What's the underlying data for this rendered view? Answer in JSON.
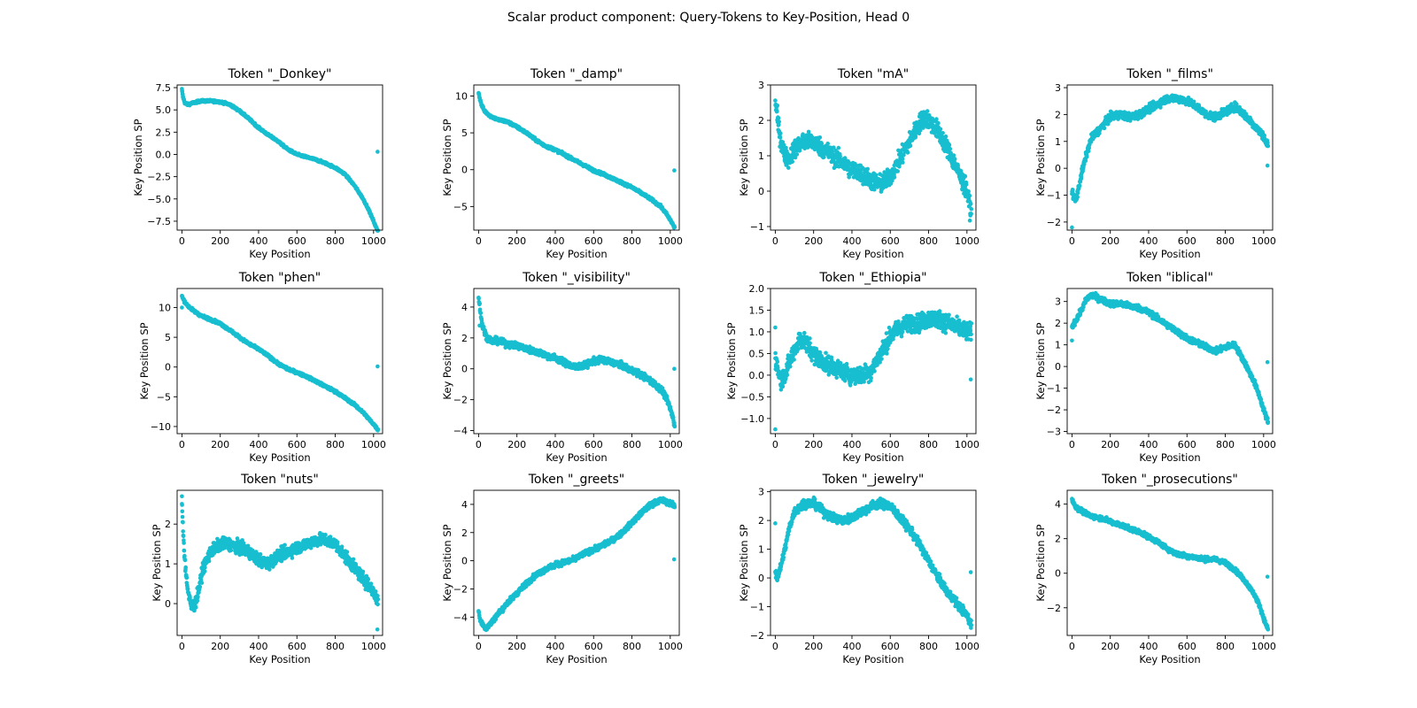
{
  "figure": {
    "suptitle": "Scalar product component: Query-Tokens to Key-Position, Head 0",
    "point_color": "#17BECF",
    "axis_color": "#000000"
  },
  "chart_data": [
    {
      "type": "scatter",
      "title": "Token \"_Donkey\"",
      "xlabel": "Key Position",
      "ylabel": "Key Position SP",
      "xlim": [
        -25,
        1047
      ],
      "ylim": [
        -8.5,
        7.8
      ],
      "xticks": [
        0,
        200,
        400,
        600,
        800,
        1000
      ],
      "xtick_labels": [
        "0",
        "200",
        "400",
        "600",
        "800",
        "1000"
      ],
      "yticks": [
        7.5,
        5.0,
        2.5,
        0.0,
        -2.5,
        -5.0,
        -7.5
      ],
      "ytick_labels": [
        "7.5",
        "5.0",
        "2.5",
        "0.0",
        "−2.5",
        "−5.0",
        "−7.5"
      ],
      "curve_x": [
        0,
        5,
        15,
        30,
        60,
        100,
        150,
        200,
        250,
        300,
        350,
        400,
        450,
        500,
        550,
        600,
        650,
        700,
        750,
        800,
        850,
        900,
        940,
        970,
        1000,
        1015,
        1020
      ],
      "curve_y": [
        7.3,
        6.5,
        5.8,
        5.6,
        5.8,
        6.0,
        6.0,
        5.9,
        5.6,
        4.9,
        4.0,
        3.0,
        2.2,
        1.5,
        0.6,
        0.0,
        -0.3,
        -0.6,
        -1.0,
        -1.5,
        -2.2,
        -3.5,
        -4.8,
        -6.0,
        -7.5,
        -8.3,
        -8.5
      ],
      "noise": 0.12,
      "outliers": [
        [
          1021,
          0.3
        ]
      ]
    },
    {
      "type": "scatter",
      "title": "Token \"_damp\"",
      "xlabel": "Key Position",
      "ylabel": "Key Position SP",
      "xlim": [
        -25,
        1047
      ],
      "ylim": [
        -8.2,
        11.5
      ],
      "xticks": [
        0,
        200,
        400,
        600,
        800,
        1000
      ],
      "xtick_labels": [
        "0",
        "200",
        "400",
        "600",
        "800",
        "1000"
      ],
      "yticks": [
        10,
        5,
        0,
        -5
      ],
      "ytick_labels": [
        "10",
        "5",
        "0",
        "−5"
      ],
      "curve_x": [
        0,
        5,
        15,
        30,
        60,
        100,
        150,
        200,
        250,
        300,
        350,
        400,
        450,
        500,
        550,
        600,
        650,
        700,
        750,
        800,
        850,
        900,
        950,
        980,
        1000,
        1015,
        1020
      ],
      "curve_y": [
        10.5,
        9.8,
        8.8,
        8.0,
        7.3,
        6.8,
        6.5,
        5.8,
        5.0,
        4.0,
        3.2,
        2.7,
        2.0,
        1.3,
        0.6,
        -0.1,
        -0.6,
        -1.2,
        -1.8,
        -2.4,
        -3.2,
        -4.0,
        -5.0,
        -6.0,
        -6.8,
        -7.5,
        -7.8
      ],
      "noise": 0.18,
      "outliers": [
        [
          1021,
          -0.1
        ]
      ]
    },
    {
      "type": "scatter",
      "title": "Token \"mA\"",
      "xlabel": "Key Position",
      "ylabel": "Key Position SP",
      "xlim": [
        -25,
        1047
      ],
      "ylim": [
        -1.1,
        3.0
      ],
      "xticks": [
        0,
        200,
        400,
        600,
        800,
        1000
      ],
      "xtick_labels": [
        "0",
        "200",
        "400",
        "600",
        "800",
        "1000"
      ],
      "yticks": [
        3,
        2,
        1,
        0,
        -1
      ],
      "ytick_labels": [
        "3",
        "2",
        "1",
        "0",
        "−1"
      ],
      "curve_x": [
        0,
        5,
        15,
        30,
        50,
        70,
        100,
        150,
        200,
        250,
        300,
        350,
        400,
        450,
        500,
        550,
        600,
        650,
        700,
        750,
        780,
        800,
        850,
        900,
        950,
        1000,
        1020
      ],
      "curve_y": [
        2.6,
        2.3,
        1.9,
        1.4,
        1.0,
        0.9,
        1.2,
        1.4,
        1.4,
        1.2,
        1.0,
        0.8,
        0.6,
        0.5,
        0.3,
        0.2,
        0.4,
        0.9,
        1.4,
        1.9,
        2.1,
        2.0,
        1.7,
        1.2,
        0.6,
        0.0,
        -0.6
      ],
      "noise": 0.25,
      "outliers": []
    },
    {
      "type": "scatter",
      "title": "Token \"_films\"",
      "xlabel": "Key Position",
      "ylabel": "Key Position SP",
      "xlim": [
        -25,
        1047
      ],
      "ylim": [
        -2.3,
        3.1
      ],
      "xticks": [
        0,
        200,
        400,
        600,
        800,
        1000
      ],
      "xtick_labels": [
        "0",
        "200",
        "400",
        "600",
        "800",
        "1000"
      ],
      "yticks": [
        3,
        2,
        1,
        0,
        -1,
        -2
      ],
      "ytick_labels": [
        "3",
        "2",
        "1",
        "0",
        "−1",
        "−2"
      ],
      "curve_x": [
        0,
        10,
        20,
        30,
        50,
        75,
        100,
        150,
        200,
        250,
        300,
        350,
        400,
        450,
        500,
        550,
        600,
        650,
        700,
        750,
        800,
        850,
        900,
        950,
        1000,
        1015
      ],
      "curve_y": [
        -0.8,
        -1.1,
        -1.2,
        -0.9,
        -0.2,
        0.5,
        1.1,
        1.5,
        1.9,
        2.0,
        1.9,
        2.0,
        2.2,
        2.4,
        2.6,
        2.6,
        2.5,
        2.3,
        2.0,
        1.9,
        2.1,
        2.3,
        2.0,
        1.6,
        1.2,
        0.9
      ],
      "noise": 0.14,
      "outliers": [
        [
          0,
          -2.2
        ],
        [
          1020,
          0.1
        ]
      ]
    },
    {
      "type": "scatter",
      "title": "Token \"phen\"",
      "xlabel": "Key Position",
      "ylabel": "Key Position SP",
      "xlim": [
        -25,
        1047
      ],
      "ylim": [
        -11.2,
        13.2
      ],
      "xticks": [
        0,
        200,
        400,
        600,
        800,
        1000
      ],
      "xtick_labels": [
        "0",
        "200",
        "400",
        "600",
        "800",
        "1000"
      ],
      "yticks": [
        10,
        5,
        0,
        -5,
        -10
      ],
      "ytick_labels": [
        "10",
        "5",
        "0",
        "−5",
        "−10"
      ],
      "curve_x": [
        0,
        5,
        15,
        30,
        60,
        100,
        150,
        200,
        250,
        300,
        350,
        400,
        450,
        500,
        550,
        600,
        650,
        700,
        750,
        800,
        850,
        900,
        950,
        980,
        1000,
        1015,
        1020
      ],
      "curve_y": [
        12.0,
        11.5,
        11.0,
        10.3,
        9.5,
        8.6,
        8.0,
        7.3,
        6.2,
        5.0,
        3.9,
        3.0,
        1.9,
        0.6,
        -0.3,
        -0.9,
        -1.6,
        -2.4,
        -3.3,
        -4.1,
        -5.2,
        -6.3,
        -7.8,
        -8.9,
        -9.6,
        -10.2,
        -10.5
      ],
      "noise": 0.22,
      "outliers": [
        [
          0,
          10.0
        ],
        [
          1021,
          0.1
        ]
      ]
    },
    {
      "type": "scatter",
      "title": "Token \"_visibility\"",
      "xlabel": "Key Position",
      "ylabel": "Key Position SP",
      "xlim": [
        -25,
        1047
      ],
      "ylim": [
        -4.2,
        5.2
      ],
      "xticks": [
        0,
        200,
        400,
        600,
        800,
        1000
      ],
      "xtick_labels": [
        "0",
        "200",
        "400",
        "600",
        "800",
        "1000"
      ],
      "yticks": [
        4,
        2,
        0,
        -2,
        -4
      ],
      "ytick_labels": [
        "4",
        "2",
        "0",
        "−2",
        "−4"
      ],
      "curve_x": [
        0,
        5,
        10,
        20,
        40,
        70,
        100,
        150,
        200,
        250,
        300,
        350,
        400,
        450,
        500,
        550,
        600,
        650,
        700,
        750,
        800,
        850,
        900,
        950,
        980,
        1000,
        1015,
        1020
      ],
      "curve_y": [
        4.6,
        4.2,
        3.6,
        2.8,
        2.1,
        1.8,
        1.8,
        1.6,
        1.5,
        1.3,
        1.1,
        0.9,
        0.7,
        0.4,
        0.1,
        0.2,
        0.5,
        0.6,
        0.4,
        0.2,
        -0.1,
        -0.4,
        -0.8,
        -1.3,
        -1.9,
        -2.6,
        -3.2,
        -3.6
      ],
      "noise": 0.2,
      "outliers": [
        [
          5,
          2.8
        ],
        [
          1021,
          0.0
        ]
      ]
    },
    {
      "type": "scatter",
      "title": "Token \"_Ethiopia\"",
      "xlabel": "Key Position",
      "ylabel": "Key Position SP",
      "xlim": [
        -25,
        1047
      ],
      "ylim": [
        -1.35,
        2.0
      ],
      "xticks": [
        0,
        200,
        400,
        600,
        800,
        1000
      ],
      "xtick_labels": [
        "0",
        "200",
        "400",
        "600",
        "800",
        "1000"
      ],
      "yticks": [
        2.0,
        1.5,
        1.0,
        0.5,
        0.0,
        -0.5,
        -1.0
      ],
      "ytick_labels": [
        "2.0",
        "1.5",
        "1.0",
        "0.5",
        "0.0",
        "−0.5",
        "−1.0"
      ],
      "curve_x": [
        0,
        10,
        25,
        50,
        75,
        100,
        125,
        150,
        200,
        250,
        300,
        350,
        400,
        450,
        500,
        550,
        600,
        650,
        700,
        750,
        800,
        850,
        900,
        950,
        1000,
        1020
      ],
      "curve_y": [
        0.4,
        0.2,
        -0.1,
        0.0,
        0.3,
        0.6,
        0.8,
        0.8,
        0.5,
        0.3,
        0.2,
        0.1,
        0.0,
        0.0,
        0.1,
        0.5,
        0.9,
        1.1,
        1.2,
        1.2,
        1.3,
        1.3,
        1.2,
        1.1,
        1.0,
        1.0
      ],
      "noise": 0.2,
      "outliers": [
        [
          0,
          -1.25
        ],
        [
          0,
          1.1
        ],
        [
          1020,
          -0.1
        ]
      ]
    },
    {
      "type": "scatter",
      "title": "Token \"iblical\"",
      "xlabel": "Key Position",
      "ylabel": "Key Position SP",
      "xlim": [
        -25,
        1047
      ],
      "ylim": [
        -3.1,
        3.6
      ],
      "xticks": [
        0,
        200,
        400,
        600,
        800,
        1000
      ],
      "xtick_labels": [
        "0",
        "200",
        "400",
        "600",
        "800",
        "1000"
      ],
      "yticks": [
        3,
        2,
        1,
        0,
        -1,
        -2,
        -3
      ],
      "ytick_labels": [
        "3",
        "2",
        "1",
        "0",
        "−1",
        "−2",
        "−3"
      ],
      "curve_x": [
        0,
        10,
        25,
        50,
        75,
        100,
        150,
        200,
        250,
        300,
        350,
        400,
        450,
        500,
        550,
        600,
        650,
        700,
        750,
        800,
        850,
        900,
        950,
        980,
        1000,
        1020
      ],
      "curve_y": [
        1.8,
        2.0,
        2.2,
        2.6,
        3.1,
        3.3,
        3.1,
        2.9,
        2.9,
        2.8,
        2.7,
        2.5,
        2.2,
        1.9,
        1.6,
        1.3,
        1.1,
        0.9,
        0.7,
        0.9,
        1.0,
        0.2,
        -0.7,
        -1.4,
        -2.0,
        -2.5
      ],
      "noise": 0.13,
      "outliers": [
        [
          0,
          1.2
        ],
        [
          1020,
          0.2
        ]
      ]
    },
    {
      "type": "scatter",
      "title": "Token \"nuts\"",
      "xlabel": "Key Position",
      "ylabel": "Key Position SP",
      "xlim": [
        -25,
        1047
      ],
      "ylim": [
        -0.8,
        2.85
      ],
      "xticks": [
        0,
        200,
        400,
        600,
        800,
        1000
      ],
      "xtick_labels": [
        "0",
        "200",
        "400",
        "600",
        "800",
        "1000"
      ],
      "yticks": [
        2,
        1,
        0
      ],
      "ytick_labels": [
        "2",
        "1",
        "0"
      ],
      "curve_x": [
        0,
        5,
        10,
        20,
        35,
        50,
        70,
        90,
        110,
        150,
        200,
        250,
        300,
        350,
        400,
        450,
        500,
        550,
        600,
        650,
        700,
        750,
        800,
        850,
        900,
        950,
        1000,
        1020
      ],
      "curve_y": [
        2.5,
        2.0,
        1.5,
        0.8,
        0.2,
        -0.1,
        0.0,
        0.4,
        0.9,
        1.3,
        1.5,
        1.5,
        1.4,
        1.3,
        1.1,
        1.0,
        1.2,
        1.3,
        1.4,
        1.5,
        1.6,
        1.6,
        1.5,
        1.2,
        0.9,
        0.6,
        0.3,
        0.1
      ],
      "noise": 0.15,
      "outliers": [
        [
          0,
          2.7
        ],
        [
          1020,
          -0.65
        ]
      ]
    },
    {
      "type": "scatter",
      "title": "Token \"_greets\"",
      "xlabel": "Key Position",
      "ylabel": "Key Position SP",
      "xlim": [
        -25,
        1047
      ],
      "ylim": [
        -5.3,
        5.0
      ],
      "xticks": [
        0,
        200,
        400,
        600,
        800,
        1000
      ],
      "xtick_labels": [
        "0",
        "200",
        "400",
        "600",
        "800",
        "1000"
      ],
      "yticks": [
        4,
        2,
        0,
        -2,
        -4
      ],
      "ytick_labels": [
        "4",
        "2",
        "0",
        "−2",
        "−4"
      ],
      "curve_x": [
        0,
        10,
        25,
        40,
        60,
        100,
        150,
        200,
        250,
        300,
        350,
        400,
        450,
        500,
        550,
        600,
        650,
        700,
        750,
        800,
        850,
        900,
        950,
        1000,
        1020
      ],
      "curve_y": [
        -3.6,
        -4.3,
        -4.6,
        -4.8,
        -4.5,
        -3.8,
        -3.0,
        -2.3,
        -1.6,
        -1.0,
        -0.6,
        -0.3,
        -0.1,
        0.1,
        0.5,
        0.8,
        1.1,
        1.5,
        2.0,
        2.7,
        3.4,
        4.0,
        4.3,
        4.1,
        3.9
      ],
      "noise": 0.18,
      "outliers": [
        [
          1020,
          0.1
        ]
      ]
    },
    {
      "type": "scatter",
      "title": "Token \"_jewelry\"",
      "xlabel": "Key Position",
      "ylabel": "Key Position SP",
      "xlim": [
        -25,
        1047
      ],
      "ylim": [
        -2.0,
        3.05
      ],
      "xticks": [
        0,
        200,
        400,
        600,
        800,
        1000
      ],
      "xtick_labels": [
        "0",
        "200",
        "400",
        "600",
        "800",
        "1000"
      ],
      "yticks": [
        3,
        2,
        1,
        0,
        -1,
        -2
      ],
      "ytick_labels": [
        "3",
        "2",
        "1",
        "0",
        "−1",
        "−2"
      ],
      "curve_x": [
        0,
        10,
        25,
        50,
        75,
        100,
        150,
        200,
        250,
        300,
        350,
        400,
        450,
        500,
        550,
        600,
        650,
        700,
        750,
        800,
        850,
        900,
        950,
        1000,
        1020
      ],
      "curve_y": [
        0.2,
        0.0,
        0.3,
        1.0,
        1.8,
        2.3,
        2.6,
        2.6,
        2.3,
        2.1,
        2.0,
        2.1,
        2.3,
        2.5,
        2.6,
        2.5,
        2.1,
        1.7,
        1.2,
        0.6,
        0.0,
        -0.5,
        -0.9,
        -1.3,
        -1.6
      ],
      "noise": 0.15,
      "outliers": [
        [
          0,
          1.9
        ],
        [
          1020,
          0.2
        ]
      ]
    },
    {
      "type": "scatter",
      "title": "Token \"_prosecutions\"",
      "xlabel": "Key Position",
      "ylabel": "Key Position SP",
      "xlim": [
        -25,
        1047
      ],
      "ylim": [
        -3.6,
        4.8
      ],
      "xticks": [
        0,
        200,
        400,
        600,
        800,
        1000
      ],
      "xtick_labels": [
        "0",
        "200",
        "400",
        "600",
        "800",
        "1000"
      ],
      "yticks": [
        4,
        2,
        0,
        -2
      ],
      "ytick_labels": [
        "4",
        "2",
        "0",
        "−2"
      ],
      "curve_x": [
        0,
        10,
        25,
        50,
        100,
        150,
        200,
        250,
        300,
        350,
        400,
        450,
        500,
        550,
        600,
        650,
        700,
        750,
        800,
        850,
        900,
        950,
        980,
        1000,
        1020
      ],
      "curve_y": [
        4.3,
        4.0,
        3.8,
        3.6,
        3.3,
        3.2,
        3.0,
        2.8,
        2.6,
        2.4,
        2.1,
        1.8,
        1.4,
        1.1,
        1.0,
        0.9,
        0.8,
        0.8,
        0.6,
        0.2,
        -0.4,
        -1.2,
        -1.9,
        -2.6,
        -3.2
      ],
      "noise": 0.13,
      "outliers": [
        [
          1020,
          -0.2
        ]
      ]
    }
  ]
}
